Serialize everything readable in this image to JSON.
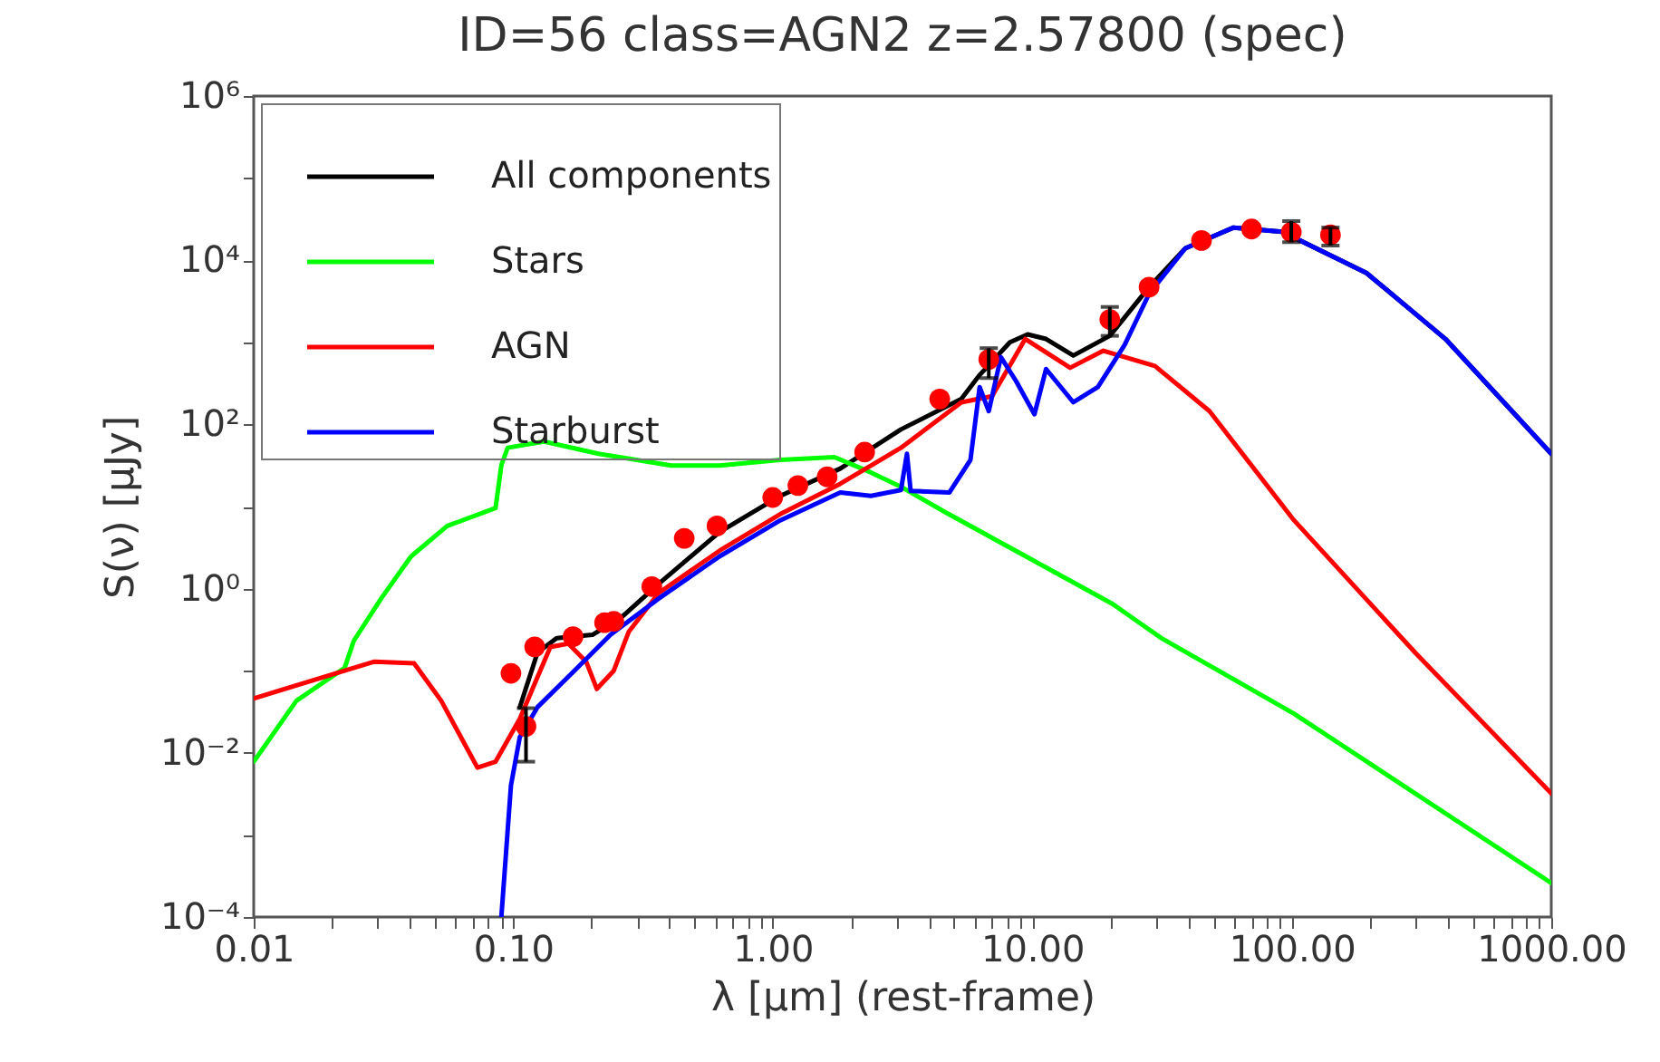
{
  "chart_data": {
    "type": "line",
    "title": "ID=56 class=AGN2 z=2.57800 (spec)",
    "xlabel": "λ [μm] (rest-frame)",
    "ylabel": "S(ν) [μJy]",
    "log": "xy",
    "grid": false,
    "legend": "top left",
    "line_style": "solid",
    "xlim": [
      0.01,
      1000
    ],
    "ylim": [
      0.0001,
      1000000
    ],
    "xticks": [
      {
        "value": 0.01,
        "label": "0.01"
      },
      {
        "value": 0.02,
        "label": null
      },
      {
        "value": 0.03,
        "label": null
      },
      {
        "value": 0.04,
        "label": null
      },
      {
        "value": 0.05,
        "label": null
      },
      {
        "value": 0.06,
        "label": null
      },
      {
        "value": 0.07,
        "label": null
      },
      {
        "value": 0.08,
        "label": null
      },
      {
        "value": 0.09,
        "label": null
      },
      {
        "value": 0.1,
        "label": "0.10"
      },
      {
        "value": 0.2,
        "label": null
      },
      {
        "value": 0.3,
        "label": null
      },
      {
        "value": 0.4,
        "label": null
      },
      {
        "value": 0.5,
        "label": null
      },
      {
        "value": 0.6,
        "label": null
      },
      {
        "value": 0.7,
        "label": null
      },
      {
        "value": 0.8,
        "label": null
      },
      {
        "value": 0.9,
        "label": null
      },
      {
        "value": 1,
        "label": "1.00"
      },
      {
        "value": 2,
        "label": null
      },
      {
        "value": 3,
        "label": null
      },
      {
        "value": 4,
        "label": null
      },
      {
        "value": 5,
        "label": null
      },
      {
        "value": 6,
        "label": null
      },
      {
        "value": 7,
        "label": null
      },
      {
        "value": 8,
        "label": null
      },
      {
        "value": 9,
        "label": null
      },
      {
        "value": 10,
        "label": "10.00"
      },
      {
        "value": 20,
        "label": null
      },
      {
        "value": 30,
        "label": null
      },
      {
        "value": 40,
        "label": null
      },
      {
        "value": 50,
        "label": null
      },
      {
        "value": 60,
        "label": null
      },
      {
        "value": 70,
        "label": null
      },
      {
        "value": 80,
        "label": null
      },
      {
        "value": 90,
        "label": null
      },
      {
        "value": 100,
        "label": "100.00"
      },
      {
        "value": 200,
        "label": null
      },
      {
        "value": 300,
        "label": null
      },
      {
        "value": 400,
        "label": null
      },
      {
        "value": 500,
        "label": null
      },
      {
        "value": 600,
        "label": null
      },
      {
        "value": 700,
        "label": null
      },
      {
        "value": 800,
        "label": null
      },
      {
        "value": 900,
        "label": null
      },
      {
        "value": 1000,
        "label": "1000.00"
      }
    ],
    "yticks": [
      {
        "value": 0.0001,
        "label": "10⁻⁴"
      },
      {
        "value": 0.001,
        "label": null
      },
      {
        "value": 0.01,
        "label": "10⁻²"
      },
      {
        "value": 0.1,
        "label": null
      },
      {
        "value": 1,
        "label": "10⁰"
      },
      {
        "value": 10,
        "label": null
      },
      {
        "value": 100,
        "label": "10²"
      },
      {
        "value": 1000,
        "label": null
      },
      {
        "value": 10000,
        "label": "10⁴"
      },
      {
        "value": 100000,
        "label": null
      },
      {
        "value": 1000000,
        "label": "10⁶"
      }
    ],
    "series": [
      {
        "name": "All components",
        "color": "#000000",
        "x": [
          0.106,
          0.124,
          0.147,
          0.202,
          0.264,
          0.364,
          0.624,
          1.07,
          1.82,
          3.12,
          5.33,
          6.27,
          8.2,
          9.6,
          11.3,
          14.4,
          19.9,
          28.2,
          38.9,
          59.7,
          91.8,
          194,
          391,
          1000
        ],
        "values": [
          0.036,
          0.166,
          0.25,
          0.274,
          0.46,
          1.15,
          4.9,
          13.5,
          29,
          87,
          204,
          400,
          1000,
          1250,
          1100,
          690,
          1200,
          4700,
          14000,
          25000,
          22300,
          7000,
          1100,
          44
        ]
      },
      {
        "name": "Stars",
        "color": "#00ff00",
        "x": [
          0.01,
          0.0146,
          0.0224,
          0.0243,
          0.031,
          0.0404,
          0.0557,
          0.0855,
          0.09,
          0.0952,
          0.1315,
          0.213,
          0.406,
          0.624,
          1.07,
          1.73,
          2.39,
          3.12,
          4.54,
          20.4,
          31.4,
          102,
          1000
        ],
        "values": [
          0.0078,
          0.043,
          0.108,
          0.231,
          0.76,
          2.47,
          5.8,
          9.6,
          31.9,
          52,
          62,
          44,
          31.6,
          31.6,
          37,
          40,
          26,
          17.4,
          8.8,
          0.65,
          0.25,
          0.03,
          0.00026
        ]
      },
      {
        "name": "AGN",
        "color": "#ff0000",
        "x": [
          0.01,
          0.0224,
          0.0292,
          0.0415,
          0.0528,
          0.0728,
          0.0855,
          0.106,
          0.139,
          0.163,
          0.191,
          0.21,
          0.244,
          0.279,
          0.364,
          0.624,
          1.07,
          1.82,
          3.12,
          5.33,
          7.0,
          9.4,
          14.0,
          18.8,
          29.7,
          48.2,
          102,
          299,
          1000
        ],
        "values": [
          0.046,
          0.1,
          0.129,
          0.123,
          0.043,
          0.0066,
          0.0078,
          0.026,
          0.195,
          0.214,
          0.129,
          0.06,
          0.1,
          0.3,
          0.89,
          2.9,
          8.1,
          18.9,
          52,
          186,
          221,
          1100,
          490,
          790,
          515,
          145,
          6.8,
          0.166,
          0.0032
        ]
      },
      {
        "name": "Starburst",
        "color": "#0000ff",
        "x": [
          0.09,
          0.098,
          0.106,
          0.124,
          0.172,
          0.237,
          0.364,
          0.624,
          1.07,
          1.82,
          2.39,
          3.12,
          3.29,
          3.4,
          4.79,
          5.78,
          6.27,
          6.8,
          7.57,
          8.65,
          10.2,
          11.3,
          14.4,
          17.9,
          22.7,
          28.2,
          38.9,
          59.7,
          91.8,
          194,
          391,
          1000
        ],
        "values": [
          0.0001,
          0.004,
          0.0155,
          0.036,
          0.1,
          0.274,
          0.76,
          2.47,
          6.8,
          14.8,
          13.5,
          15.9,
          44,
          15.5,
          14.8,
          37,
          285,
          145,
          660,
          340,
          133,
          473,
          186,
          285,
          930,
          3900,
          14000,
          25000,
          22300,
          7000,
          1100,
          44
        ]
      },
      {
        "color": "#ff0000",
        "type": "scatter",
        "marker": "circle",
        "x": [
          0.098,
          0.112,
          0.121,
          0.17,
          0.225,
          0.244,
          0.342,
          0.456,
          0.61,
          1.0,
          1.25,
          1.62,
          2.26,
          4.4,
          6.8,
          19.9,
          28.2,
          44.9,
          70,
          99.6,
          141
        ],
        "values": [
          0.093,
          0.021,
          0.195,
          0.26,
          0.385,
          0.4,
          1.06,
          4.1,
          5.8,
          12.9,
          18,
          23,
          46,
          204,
          620,
          1900,
          4700,
          17400,
          24000,
          22000,
          20400
        ],
        "errors": [
          null,
          [
            0.0078,
            0.035
          ],
          null,
          null,
          null,
          null,
          null,
          null,
          null,
          null,
          null,
          null,
          null,
          null,
          [
            367,
            850
          ],
          [
            1200,
            2700
          ],
          null,
          null,
          null,
          [
            16600,
            30000
          ],
          [
            15100,
            25000
          ]
        ]
      }
    ]
  }
}
